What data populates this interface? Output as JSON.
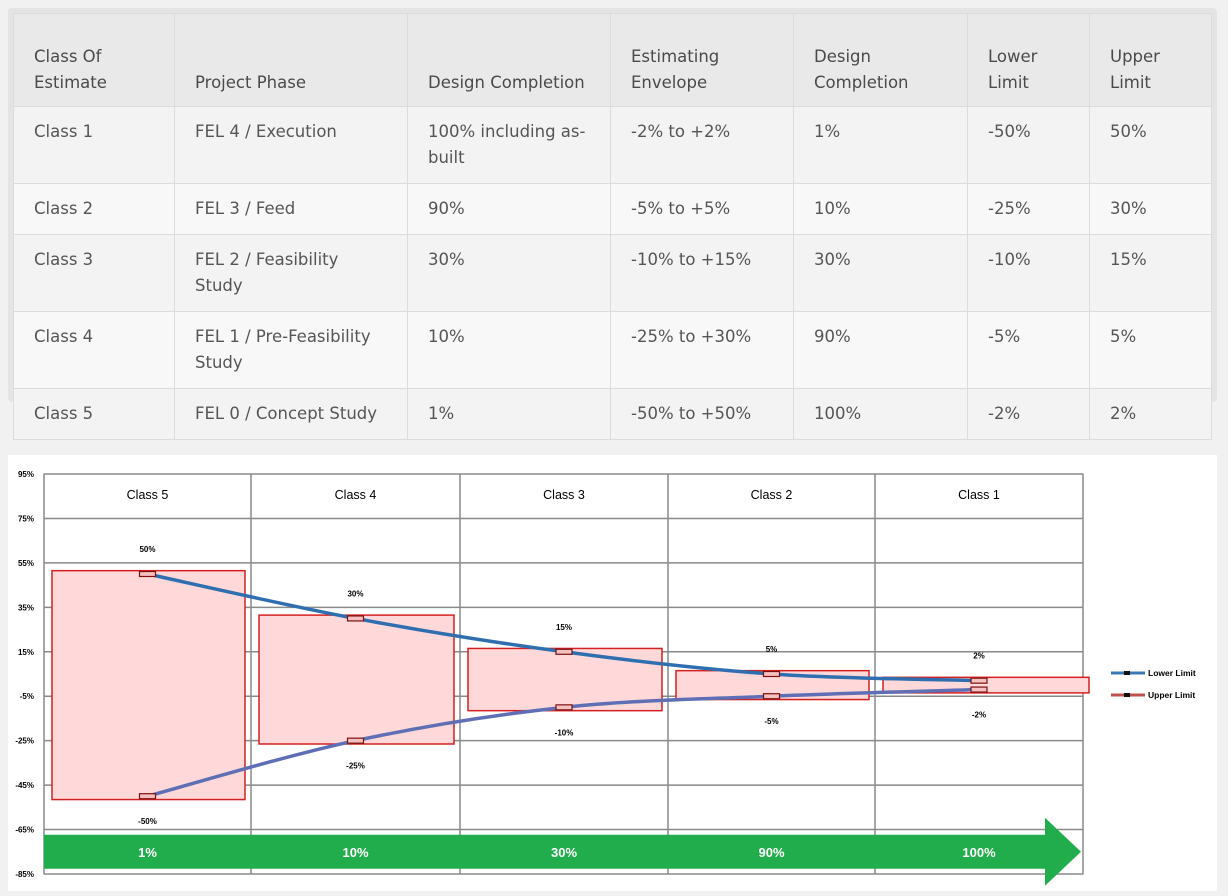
{
  "table": {
    "headers": [
      "Class Of Estimate",
      "Project Phase",
      "Design Completion",
      "Estimating Envelope",
      "Design Completion",
      "Lower Limit",
      "Upper Limit"
    ],
    "rows": [
      [
        "Class 1",
        "FEL 4 / Execution",
        "100% including as-built",
        "-2% to +2%",
        "1%",
        "-50%",
        "50%"
      ],
      [
        "Class 2",
        "FEL 3 / Feed",
        "90%",
        "-5% to +5%",
        "10%",
        "-25%",
        "30%"
      ],
      [
        "Class 3",
        "FEL 2 / Feasibility Study",
        "30%",
        "-10% to +15%",
        "30%",
        "-10%",
        "15%"
      ],
      [
        "Class 4",
        "FEL 1 / Pre-Feasibility Study",
        "10%",
        "-25% to +30%",
        "90%",
        "-5%",
        "5%"
      ],
      [
        "Class 5",
        "FEL 0 / Concept Study",
        "1%",
        "-50% to +50%",
        "100%",
        "-2%",
        "2%"
      ]
    ]
  },
  "chart_data": {
    "type": "line",
    "categories": [
      "Class 5",
      "Class 4",
      "Class 3",
      "Class 2",
      "Class 1"
    ],
    "completion_labels": [
      "1%",
      "10%",
      "30%",
      "90%",
      "100%"
    ],
    "yticks": [
      "95%",
      "75%",
      "55%",
      "35%",
      "15%",
      "-5%",
      "-25%",
      "-45%",
      "-65%",
      "-85%"
    ],
    "ylim": [
      -85,
      95
    ],
    "upper": [
      50,
      30,
      15,
      5,
      2
    ],
    "lower": [
      -50,
      -25,
      -10,
      -5,
      -2
    ],
    "upper_labels": [
      "50%",
      "30%",
      "15%",
      "5%",
      "2%"
    ],
    "lower_labels": [
      "-50%",
      "-25%",
      "-10%",
      "-5%",
      "-2%"
    ],
    "legend": [
      {
        "name": "Lower Limit",
        "color": "#3b78b8"
      },
      {
        "name": "Upper Limit",
        "color": "#c0504d"
      }
    ],
    "legend_position": "right",
    "box_fill": "#ffd9d9",
    "box_stroke": "#d42020",
    "arrow_color": "#22ad4c",
    "grid": true
  }
}
